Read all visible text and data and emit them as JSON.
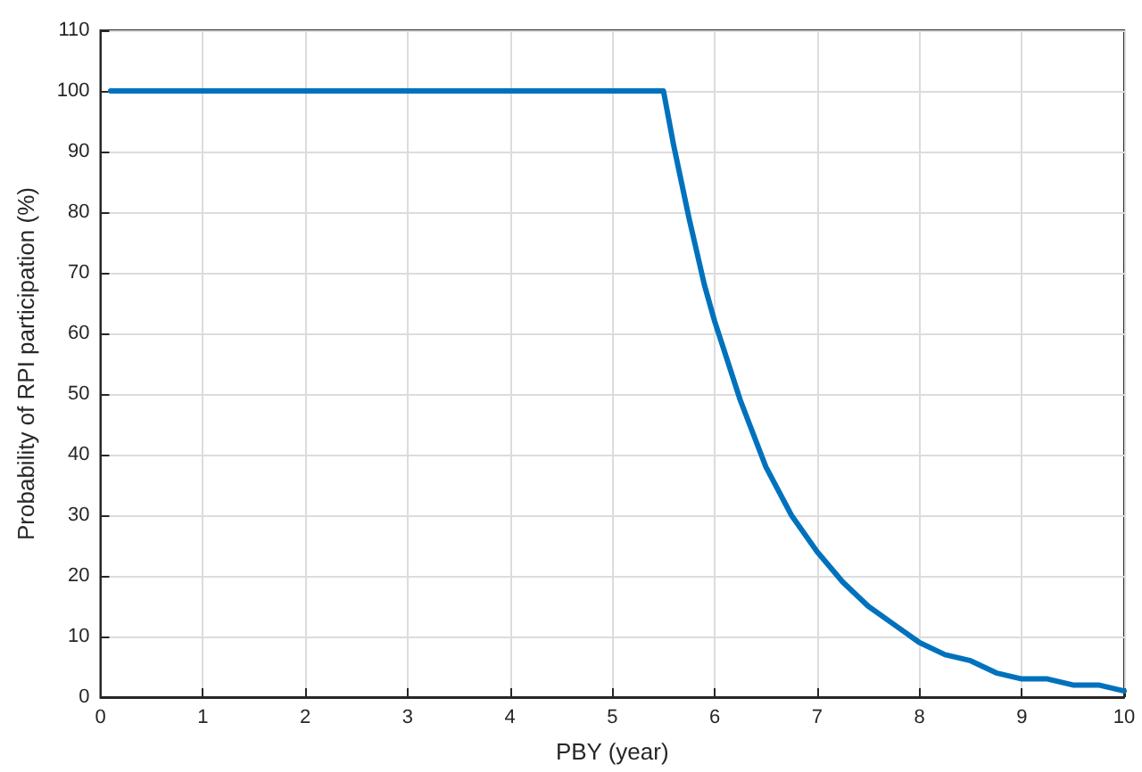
{
  "chart_data": {
    "type": "line",
    "xlabel": "PBY (year)",
    "ylabel": "Probability of RPI participation (%)",
    "x": [
      0.1,
      1,
      2,
      3,
      4,
      5,
      5.5,
      5.6,
      5.75,
      5.9,
      6,
      6.25,
      6.5,
      6.75,
      7,
      7.25,
      7.5,
      7.75,
      8,
      8.25,
      8.5,
      8.75,
      9,
      9.25,
      9.5,
      9.75,
      10
    ],
    "series": [
      {
        "color": "#0072bd",
        "values": [
          100,
          100,
          100,
          100,
          100,
          100,
          100,
          91,
          79,
          68,
          62,
          49,
          38,
          30,
          24,
          19,
          15,
          12,
          9,
          7,
          6,
          4,
          3,
          3,
          2,
          2,
          1
        ]
      }
    ],
    "xlim": [
      0,
      10
    ],
    "xticks": [
      0,
      1,
      2,
      3,
      4,
      5,
      6,
      7,
      8,
      9,
      10
    ],
    "ylim": [
      0,
      110
    ],
    "yticks": [
      0,
      10,
      20,
      30,
      40,
      50,
      60,
      70,
      80,
      90,
      100,
      110
    ],
    "grid": true,
    "marker": "none",
    "line_style": "solid"
  }
}
